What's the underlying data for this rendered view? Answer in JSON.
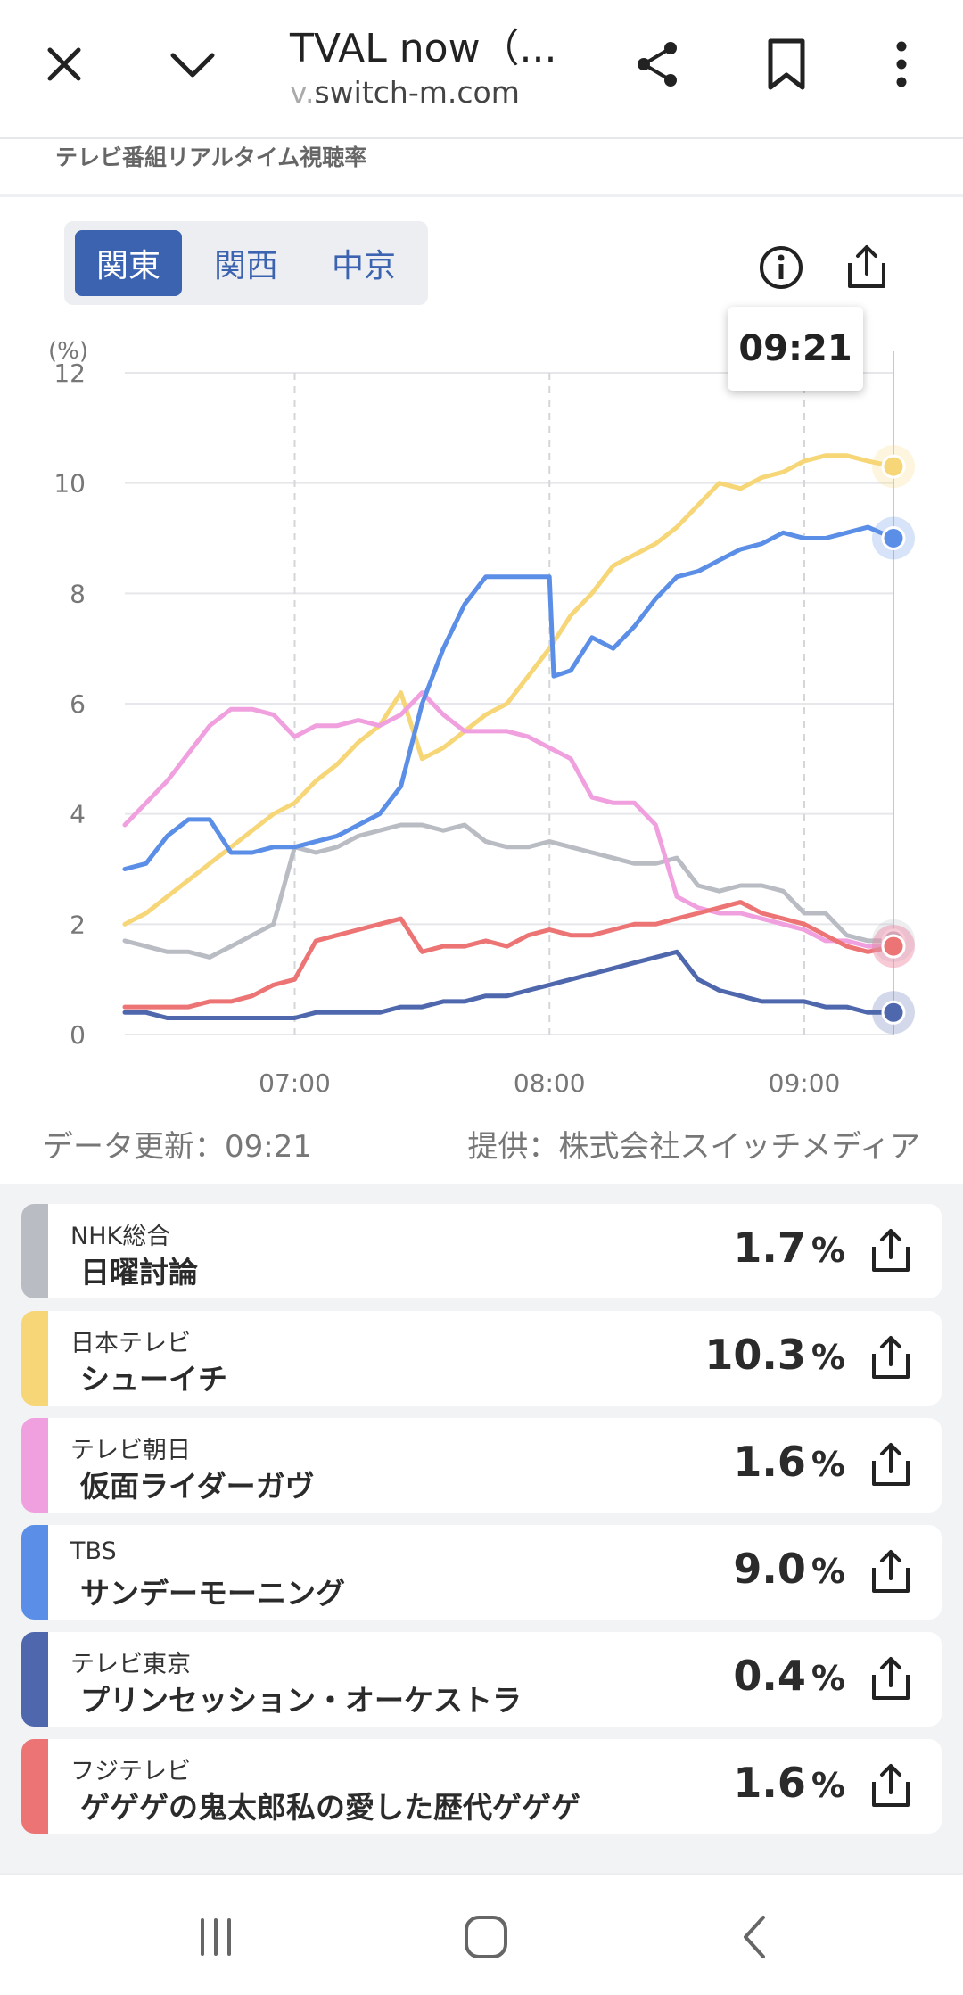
{
  "browser": {
    "title": "TVAL now（...",
    "url_prefix": "v.",
    "url_domain": "switch-m.com",
    "icons": [
      "close-icon",
      "chevron-down-icon",
      "share-icon",
      "bookmark-icon",
      "more-vert-icon"
    ]
  },
  "page": {
    "subtitle": "テレビ番組リアルタイム視聴率"
  },
  "regions": {
    "tabs": [
      "関東",
      "関西",
      "中京"
    ],
    "selected": "関東"
  },
  "tooltip_time": "09:21",
  "footer": {
    "updated": "データ更新：09:21",
    "provider": "提供：株式会社スイッチメディア"
  },
  "chart_data": {
    "type": "line",
    "yunit": "(%)",
    "ylim": [
      0,
      12
    ],
    "yticks": [
      "0",
      "2",
      "4",
      "6",
      "8",
      "10",
      "12"
    ],
    "xticks": [
      "07:00",
      "08:00",
      "09:00"
    ],
    "xlim_minutes": [
      380,
      561
    ],
    "grid": true,
    "series": [
      {
        "name": "NHK総合",
        "color": "#b9bcc3",
        "x": [
          380,
          385,
          390,
          395,
          400,
          405,
          410,
          415,
          420,
          425,
          430,
          435,
          440,
          445,
          450,
          455,
          460,
          465,
          470,
          475,
          480,
          485,
          490,
          495,
          500,
          505,
          510,
          515,
          520,
          525,
          530,
          535,
          540,
          545,
          550,
          555,
          561
        ],
        "y": [
          1.7,
          1.6,
          1.5,
          1.5,
          1.4,
          1.6,
          1.8,
          2.0,
          3.4,
          3.3,
          3.4,
          3.6,
          3.7,
          3.8,
          3.8,
          3.7,
          3.8,
          3.5,
          3.4,
          3.4,
          3.5,
          3.4,
          3.3,
          3.2,
          3.1,
          3.1,
          3.2,
          2.7,
          2.6,
          2.7,
          2.7,
          2.6,
          2.2,
          2.2,
          1.8,
          1.7,
          1.7
        ]
      },
      {
        "name": "日本テレビ",
        "color": "#f6d677",
        "x": [
          380,
          385,
          390,
          395,
          400,
          405,
          410,
          415,
          420,
          425,
          430,
          435,
          440,
          445,
          450,
          455,
          460,
          465,
          470,
          475,
          480,
          485,
          490,
          495,
          500,
          505,
          510,
          515,
          520,
          525,
          530,
          535,
          540,
          545,
          550,
          555,
          561
        ],
        "y": [
          2.0,
          2.2,
          2.5,
          2.8,
          3.1,
          3.4,
          3.7,
          4.0,
          4.2,
          4.6,
          4.9,
          5.3,
          5.6,
          6.2,
          5.0,
          5.2,
          5.5,
          5.8,
          6.0,
          6.5,
          7.0,
          7.6,
          8.0,
          8.5,
          8.7,
          8.9,
          9.2,
          9.6,
          10.0,
          9.9,
          10.1,
          10.2,
          10.4,
          10.5,
          10.5,
          10.4,
          10.3
        ]
      },
      {
        "name": "テレビ朝日",
        "color": "#f0a0de",
        "x": [
          380,
          385,
          390,
          395,
          400,
          405,
          410,
          415,
          420,
          425,
          430,
          435,
          440,
          445,
          450,
          455,
          460,
          465,
          470,
          475,
          480,
          485,
          490,
          495,
          500,
          505,
          510,
          515,
          520,
          525,
          530,
          535,
          540,
          545,
          550,
          555,
          561
        ],
        "y": [
          3.8,
          4.2,
          4.6,
          5.1,
          5.6,
          5.9,
          5.9,
          5.8,
          5.4,
          5.6,
          5.6,
          5.7,
          5.6,
          5.8,
          6.2,
          5.8,
          5.5,
          5.5,
          5.5,
          5.4,
          5.2,
          5.0,
          4.3,
          4.2,
          4.2,
          3.8,
          2.5,
          2.3,
          2.2,
          2.2,
          2.1,
          2.0,
          1.9,
          1.7,
          1.7,
          1.6,
          1.6
        ]
      },
      {
        "name": "TBS",
        "color": "#5b8ee6",
        "x": [
          380,
          385,
          390,
          395,
          400,
          405,
          410,
          415,
          420,
          425,
          430,
          435,
          440,
          445,
          450,
          455,
          460,
          465,
          470,
          475,
          480,
          481,
          485,
          490,
          495,
          500,
          505,
          510,
          515,
          520,
          525,
          530,
          535,
          540,
          545,
          550,
          555,
          561
        ],
        "y": [
          3.0,
          3.1,
          3.6,
          3.9,
          3.9,
          3.3,
          3.3,
          3.4,
          3.4,
          3.5,
          3.6,
          3.8,
          4.0,
          4.5,
          6.0,
          7.0,
          7.8,
          8.3,
          8.3,
          8.3,
          8.3,
          6.5,
          6.6,
          7.2,
          7.0,
          7.4,
          7.9,
          8.3,
          8.4,
          8.6,
          8.8,
          8.9,
          9.1,
          9.0,
          9.0,
          9.1,
          9.2,
          9.0
        ]
      },
      {
        "name": "テレビ東京",
        "color": "#4f68ad",
        "x": [
          380,
          385,
          390,
          395,
          400,
          405,
          410,
          415,
          420,
          425,
          430,
          435,
          440,
          445,
          450,
          455,
          460,
          465,
          470,
          475,
          480,
          485,
          490,
          495,
          500,
          505,
          510,
          515,
          520,
          525,
          530,
          535,
          540,
          545,
          550,
          555,
          561
        ],
        "y": [
          0.4,
          0.4,
          0.3,
          0.3,
          0.3,
          0.3,
          0.3,
          0.3,
          0.3,
          0.4,
          0.4,
          0.4,
          0.4,
          0.5,
          0.5,
          0.6,
          0.6,
          0.7,
          0.7,
          0.8,
          0.9,
          1.0,
          1.1,
          1.2,
          1.3,
          1.4,
          1.5,
          1.0,
          0.8,
          0.7,
          0.6,
          0.6,
          0.6,
          0.5,
          0.5,
          0.4,
          0.4
        ]
      },
      {
        "name": "フジテレビ",
        "color": "#ec7474",
        "x": [
          380,
          385,
          390,
          395,
          400,
          405,
          410,
          415,
          420,
          425,
          430,
          435,
          440,
          445,
          450,
          455,
          460,
          465,
          470,
          475,
          480,
          485,
          490,
          495,
          500,
          505,
          510,
          515,
          520,
          525,
          530,
          535,
          540,
          545,
          550,
          555,
          561
        ],
        "y": [
          0.5,
          0.5,
          0.5,
          0.5,
          0.6,
          0.6,
          0.7,
          0.9,
          1.0,
          1.7,
          1.8,
          1.9,
          2.0,
          2.1,
          1.5,
          1.6,
          1.6,
          1.7,
          1.6,
          1.8,
          1.9,
          1.8,
          1.8,
          1.9,
          2.0,
          2.0,
          2.1,
          2.2,
          2.3,
          2.4,
          2.2,
          2.1,
          2.0,
          1.8,
          1.6,
          1.5,
          1.6
        ]
      }
    ]
  },
  "programs": [
    {
      "channel": "NHK総合",
      "title": "日曜討論",
      "value": "1.7",
      "unit": "%",
      "color": "#b9bcc3"
    },
    {
      "channel": "日本テレビ",
      "title": "シューイチ",
      "value": "10.3",
      "unit": "%",
      "color": "#f6d677"
    },
    {
      "channel": "テレビ朝日",
      "title": "仮面ライダーガヴ",
      "value": "1.6",
      "unit": "%",
      "color": "#f0a0de"
    },
    {
      "channel": "TBS",
      "title": "サンデーモーニング",
      "value": "9.0",
      "unit": "%",
      "color": "#5b8ee6"
    },
    {
      "channel": "テレビ東京",
      "title": "プリンセッション・オーケストラ",
      "value": "0.4",
      "unit": "%",
      "color": "#4f68ad"
    },
    {
      "channel": "フジテレビ",
      "title": "ゲゲゲの鬼太郎私の愛した歴代ゲゲゲ",
      "value": "1.6",
      "unit": "%",
      "color": "#ec7474"
    }
  ],
  "system_nav": [
    "recent-apps-icon",
    "home-icon",
    "back-icon"
  ]
}
